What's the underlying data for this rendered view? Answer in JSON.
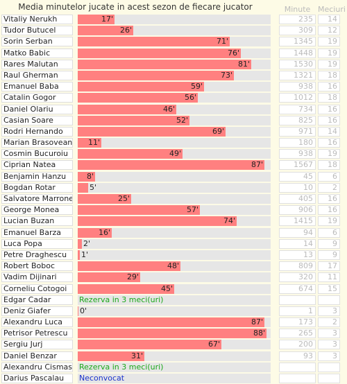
{
  "title": "Media minutelor jucate in acest sezon de fiecare jucator",
  "headers": {
    "minutes": "Minute",
    "matches": "Meciuri"
  },
  "colors": {
    "bar": "#ff8080",
    "track": "#e6e6e6",
    "reserve": "#1aa81a",
    "uncalled": "#1a33cc"
  },
  "max_minutes": 90,
  "players": [
    {
      "name": "Vitaliy Nerukh",
      "avg": 17,
      "label": "17'",
      "minutes": "235",
      "matches": "14"
    },
    {
      "name": "Tudor Butucel",
      "avg": 26,
      "label": "26'",
      "minutes": "309",
      "matches": "12"
    },
    {
      "name": "Sorin Serban",
      "avg": 71,
      "label": "71'",
      "minutes": "1345",
      "matches": "19"
    },
    {
      "name": "Matko Babic",
      "avg": 76,
      "label": "76'",
      "minutes": "1448",
      "matches": "19"
    },
    {
      "name": "Rares Malutan",
      "avg": 81,
      "label": "81'",
      "minutes": "1530",
      "matches": "19"
    },
    {
      "name": "Raul Gherman",
      "avg": 73,
      "label": "73'",
      "minutes": "1321",
      "matches": "18"
    },
    {
      "name": "Emanuel Baba",
      "avg": 59,
      "label": "59'",
      "minutes": "938",
      "matches": "16"
    },
    {
      "name": "Catalin Gogor",
      "avg": 56,
      "label": "56'",
      "minutes": "1012",
      "matches": "18"
    },
    {
      "name": "Daniel Olariu",
      "avg": 46,
      "label": "46'",
      "minutes": "734",
      "matches": "16"
    },
    {
      "name": "Casian Soare",
      "avg": 52,
      "label": "52'",
      "minutes": "825",
      "matches": "16"
    },
    {
      "name": "Rodri Hernando",
      "avg": 69,
      "label": "69'",
      "minutes": "971",
      "matches": "14"
    },
    {
      "name": "Marian Brasoveanu",
      "avg": 11,
      "label": "11'",
      "minutes": "180",
      "matches": "16"
    },
    {
      "name": "Cosmin Bucuroiu",
      "avg": 49,
      "label": "49'",
      "minutes": "938",
      "matches": "19"
    },
    {
      "name": "Ciprian Natea",
      "avg": 87,
      "label": "87'",
      "minutes": "1567",
      "matches": "18"
    },
    {
      "name": "Benjamin Hanzu",
      "avg": 8,
      "label": "8'",
      "minutes": "45",
      "matches": "6"
    },
    {
      "name": "Bogdan Rotar",
      "avg": 5,
      "label": "5'",
      "minutes": "10",
      "matches": "2"
    },
    {
      "name": "Salvatore Marrone",
      "avg": 25,
      "label": "25'",
      "minutes": "405",
      "matches": "16"
    },
    {
      "name": "George Monea",
      "avg": 57,
      "label": "57'",
      "minutes": "906",
      "matches": "16"
    },
    {
      "name": "Lucian Buzan",
      "avg": 74,
      "label": "74'",
      "minutes": "1415",
      "matches": "19"
    },
    {
      "name": "Emanuel Barza",
      "avg": 16,
      "label": "16'",
      "minutes": "94",
      "matches": "6"
    },
    {
      "name": "Luca Popa",
      "avg": 2,
      "label": "2'",
      "minutes": "14",
      "matches": "9"
    },
    {
      "name": "Petre Draghescu",
      "avg": 1,
      "label": "1'",
      "minutes": "13",
      "matches": "9"
    },
    {
      "name": "Robert Boboc",
      "avg": 48,
      "label": "48'",
      "minutes": "809",
      "matches": "17"
    },
    {
      "name": "Vadim Dijinari",
      "avg": 29,
      "label": "29'",
      "minutes": "320",
      "matches": "11"
    },
    {
      "name": "Corneliu Cotogoi",
      "avg": 45,
      "label": "45'",
      "minutes": "674",
      "matches": "15"
    },
    {
      "name": "Edgar Cadar",
      "note": "Rezerva in 3 meci(uri)",
      "note_type": "green",
      "minutes": "",
      "matches": ""
    },
    {
      "name": "Deniz Giafer",
      "avg": 0,
      "label": "0'",
      "minutes": "1",
      "matches": "3"
    },
    {
      "name": "Alexandru Luca",
      "avg": 87,
      "label": "87'",
      "minutes": "173",
      "matches": "2"
    },
    {
      "name": "Petrisor Petrescu",
      "avg": 88,
      "label": "88'",
      "minutes": "265",
      "matches": "3"
    },
    {
      "name": "Sergiu Jurj",
      "avg": 67,
      "label": "67'",
      "minutes": "200",
      "matches": "3"
    },
    {
      "name": "Daniel Benzar",
      "avg": 31,
      "label": "31'",
      "minutes": "93",
      "matches": "3"
    },
    {
      "name": "Alexandru Cismas",
      "note": "Rezerva in 3 meci(uri)",
      "note_type": "green",
      "minutes": "",
      "matches": ""
    },
    {
      "name": "Darius Pascalau",
      "note": "Neconvocat",
      "note_type": "blue",
      "minutes": "",
      "matches": ""
    }
  ]
}
